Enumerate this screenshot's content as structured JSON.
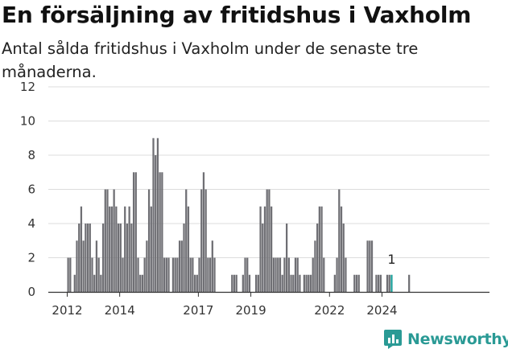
{
  "header": {
    "title": "En försäljning av fritidshus i Vaxholm",
    "subtitle": "Antal sålda fritidshus i Vaxholm under de senaste tre månaderna."
  },
  "brand": {
    "name": "Newsworthy",
    "color": "#2a9a95",
    "icon": "newsworthy-logo-icon"
  },
  "colors": {
    "bars": "#6f6f74",
    "highlight": "#1a9f9a",
    "grid": "#dcdcdc",
    "axis": "#333333"
  },
  "chart_data": {
    "type": "bar",
    "title": "En försäljning av fritidshus i Vaxholm",
    "xlabel": "",
    "ylabel": "",
    "ylim": [
      0,
      12
    ],
    "yticks": [
      0,
      2,
      4,
      6,
      8,
      10,
      12
    ],
    "xticks": [
      "2012",
      "2014",
      "2017",
      "2019",
      "2022",
      "2024"
    ],
    "grid": true,
    "x_start": "2012-01",
    "annotation": {
      "text": "1",
      "index": 148
    },
    "values": [
      2,
      2,
      0,
      1,
      3,
      4,
      5,
      3,
      4,
      4,
      4,
      2,
      1,
      3,
      2,
      1,
      4,
      6,
      6,
      5,
      5,
      6,
      5,
      4,
      4,
      2,
      5,
      4,
      5,
      4,
      7,
      7,
      2,
      1,
      1,
      2,
      3,
      6,
      5,
      9,
      8,
      9,
      7,
      7,
      2,
      2,
      2,
      0,
      2,
      2,
      2,
      3,
      3,
      4,
      6,
      5,
      2,
      2,
      1,
      1,
      2,
      6,
      7,
      6,
      2,
      2,
      3,
      2,
      0,
      0,
      0,
      0,
      0,
      0,
      0,
      1,
      1,
      1,
      0,
      0,
      1,
      2,
      2,
      1,
      0,
      0,
      1,
      1,
      5,
      4,
      5,
      6,
      6,
      5,
      2,
      2,
      2,
      2,
      1,
      2,
      4,
      2,
      1,
      1,
      2,
      2,
      1,
      0,
      1,
      1,
      1,
      1,
      2,
      3,
      4,
      5,
      5,
      2,
      0,
      0,
      0,
      0,
      1,
      2,
      6,
      5,
      4,
      2,
      0,
      0,
      0,
      1,
      1,
      1,
      0,
      0,
      0,
      3,
      3,
      3,
      0,
      1,
      1,
      1,
      0,
      0,
      1,
      1,
      1,
      0,
      0,
      0,
      0,
      0,
      0,
      0,
      1
    ]
  }
}
